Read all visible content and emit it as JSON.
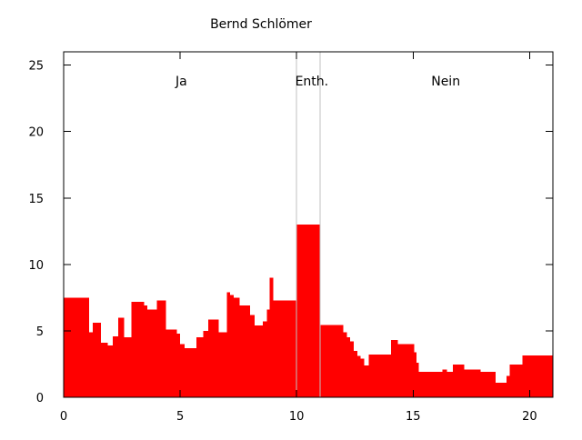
{
  "title": "Bernd Schlömer",
  "chart_data": {
    "type": "area",
    "style": "filled-step-function",
    "title": "Bernd Schlömer",
    "xlabel": "",
    "ylabel": "",
    "xlim": [
      0,
      21
    ],
    "ylim": [
      0,
      26
    ],
    "x_ticks": [
      0,
      5,
      10,
      15,
      20
    ],
    "y_ticks": [
      0,
      5,
      10,
      15,
      20,
      25
    ],
    "grid": false,
    "legend": "none",
    "fill_color": "#ff0000",
    "axis_color": "#000000",
    "separator_color": "#c0c0c0",
    "background_color": "#ffffff",
    "separators_x": [
      10,
      11
    ],
    "regions": [
      {
        "label": "Ja",
        "x_from": 0,
        "x_to": 10,
        "label_x": 5.05,
        "label_y": 23.8
      },
      {
        "label": "Enth.",
        "x_from": 10,
        "x_to": 11,
        "label_x": 10.65,
        "label_y": 23.8
      },
      {
        "label": "Nein",
        "x_from": 11,
        "x_to": 21,
        "label_x": 16.4,
        "label_y": 23.8
      }
    ],
    "x_end": 21,
    "steps": [
      [
        0.0,
        7.5
      ],
      [
        1.1,
        4.9
      ],
      [
        1.25,
        5.6
      ],
      [
        1.6,
        4.1
      ],
      [
        1.9,
        3.9
      ],
      [
        2.1,
        4.6
      ],
      [
        2.35,
        6.0
      ],
      [
        2.6,
        4.5
      ],
      [
        2.9,
        7.2
      ],
      [
        3.45,
        6.9
      ],
      [
        3.6,
        6.6
      ],
      [
        4.0,
        7.3
      ],
      [
        4.4,
        5.1
      ],
      [
        4.85,
        4.8
      ],
      [
        5.0,
        4.0
      ],
      [
        5.2,
        3.7
      ],
      [
        5.7,
        4.5
      ],
      [
        6.0,
        5.0
      ],
      [
        6.2,
        5.85
      ],
      [
        6.65,
        4.9
      ],
      [
        7.0,
        7.9
      ],
      [
        7.15,
        7.7
      ],
      [
        7.3,
        7.5
      ],
      [
        7.55,
        6.9
      ],
      [
        8.0,
        6.2
      ],
      [
        8.2,
        5.4
      ],
      [
        8.55,
        5.7
      ],
      [
        8.72,
        6.6
      ],
      [
        8.85,
        9.0
      ],
      [
        9.0,
        7.3
      ],
      [
        10.0,
        13.0
      ],
      [
        11.0,
        5.45
      ],
      [
        12.0,
        4.9
      ],
      [
        12.15,
        4.5
      ],
      [
        12.3,
        4.2
      ],
      [
        12.45,
        3.5
      ],
      [
        12.6,
        3.1
      ],
      [
        12.75,
        2.9
      ],
      [
        12.9,
        2.4
      ],
      [
        13.1,
        3.2
      ],
      [
        14.05,
        4.3
      ],
      [
        14.35,
        4.0
      ],
      [
        15.05,
        3.4
      ],
      [
        15.15,
        2.6
      ],
      [
        15.25,
        1.9
      ],
      [
        16.25,
        2.1
      ],
      [
        16.45,
        1.9
      ],
      [
        16.7,
        2.45
      ],
      [
        17.2,
        2.1
      ],
      [
        17.9,
        1.9
      ],
      [
        18.55,
        1.1
      ],
      [
        19.0,
        1.6
      ],
      [
        19.15,
        2.45
      ],
      [
        19.7,
        3.15
      ]
    ]
  }
}
